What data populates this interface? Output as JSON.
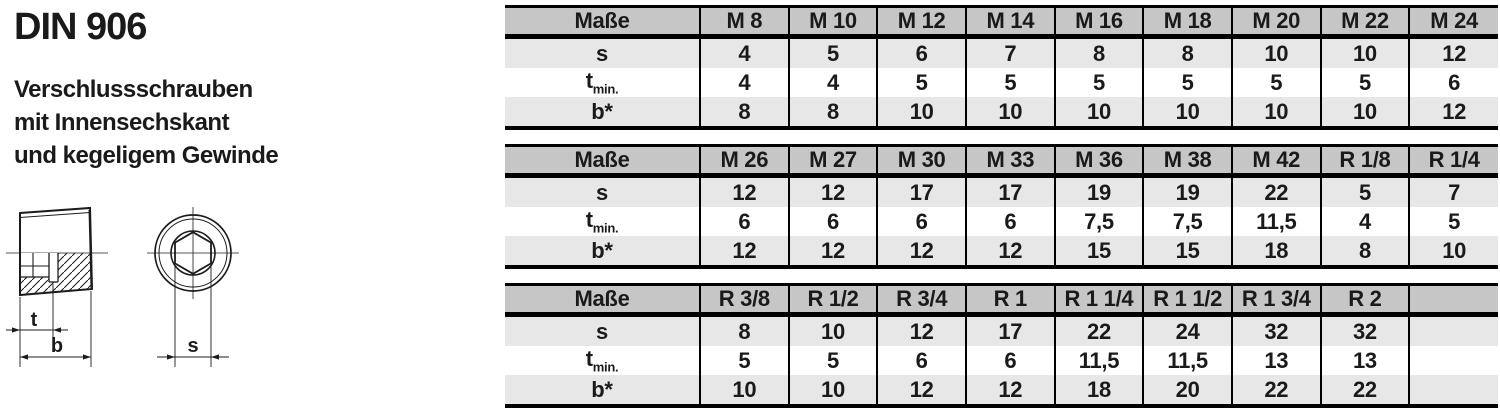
{
  "header": {
    "title": "DIN 906",
    "subtitle_lines": [
      "Verschlussschrauben",
      "mit Innensechskant",
      "und kegeligem Gewinde"
    ]
  },
  "drawing": {
    "labels": {
      "t": "t",
      "b": "b",
      "s": "s"
    }
  },
  "colors": {
    "header_bg": "#c6c6c6",
    "stripe_bg": "#e7e7e7",
    "border": "#000000",
    "text": "#1a1a1a"
  },
  "tables": [
    {
      "corner_label": "Maße",
      "columns": [
        "M 8",
        "M 10",
        "M 12",
        "M 14",
        "M 16",
        "M 18",
        "M 20",
        "M 22",
        "M 24"
      ],
      "rows": [
        {
          "label": "s",
          "sublabel": "",
          "values": [
            "4",
            "5",
            "6",
            "7",
            "8",
            "8",
            "10",
            "10",
            "12"
          ]
        },
        {
          "label": "t",
          "sublabel": "min.",
          "values": [
            "4",
            "4",
            "5",
            "5",
            "5",
            "5",
            "5",
            "5",
            "6"
          ]
        },
        {
          "label": "b*",
          "sublabel": "",
          "values": [
            "8",
            "8",
            "10",
            "10",
            "10",
            "10",
            "10",
            "10",
            "12"
          ]
        }
      ]
    },
    {
      "corner_label": "Maße",
      "columns": [
        "M 26",
        "M 27",
        "M 30",
        "M 33",
        "M 36",
        "M 38",
        "M 42",
        "R 1/8",
        "R 1/4"
      ],
      "rows": [
        {
          "label": "s",
          "sublabel": "",
          "values": [
            "12",
            "12",
            "17",
            "17",
            "19",
            "19",
            "22",
            "5",
            "7"
          ]
        },
        {
          "label": "t",
          "sublabel": "min.",
          "values": [
            "6",
            "6",
            "6",
            "6",
            "7,5",
            "7,5",
            "11,5",
            "4",
            "5"
          ]
        },
        {
          "label": "b*",
          "sublabel": "",
          "values": [
            "12",
            "12",
            "12",
            "12",
            "15",
            "15",
            "18",
            "8",
            "10"
          ]
        }
      ]
    },
    {
      "corner_label": "Maße",
      "columns": [
        "R 3/8",
        "R 1/2",
        "R 3/4",
        "R 1",
        "R 1 1/4",
        "R 1 1/2",
        "R 1 3/4",
        "R 2",
        ""
      ],
      "rows": [
        {
          "label": "s",
          "sublabel": "",
          "values": [
            "8",
            "10",
            "12",
            "17",
            "22",
            "24",
            "32",
            "32",
            ""
          ]
        },
        {
          "label": "t",
          "sublabel": "min.",
          "values": [
            "5",
            "5",
            "6",
            "6",
            "11,5",
            "11,5",
            "13",
            "13",
            ""
          ]
        },
        {
          "label": "b*",
          "sublabel": "",
          "values": [
            "10",
            "10",
            "12",
            "12",
            "18",
            "20",
            "22",
            "22",
            ""
          ]
        }
      ]
    }
  ]
}
